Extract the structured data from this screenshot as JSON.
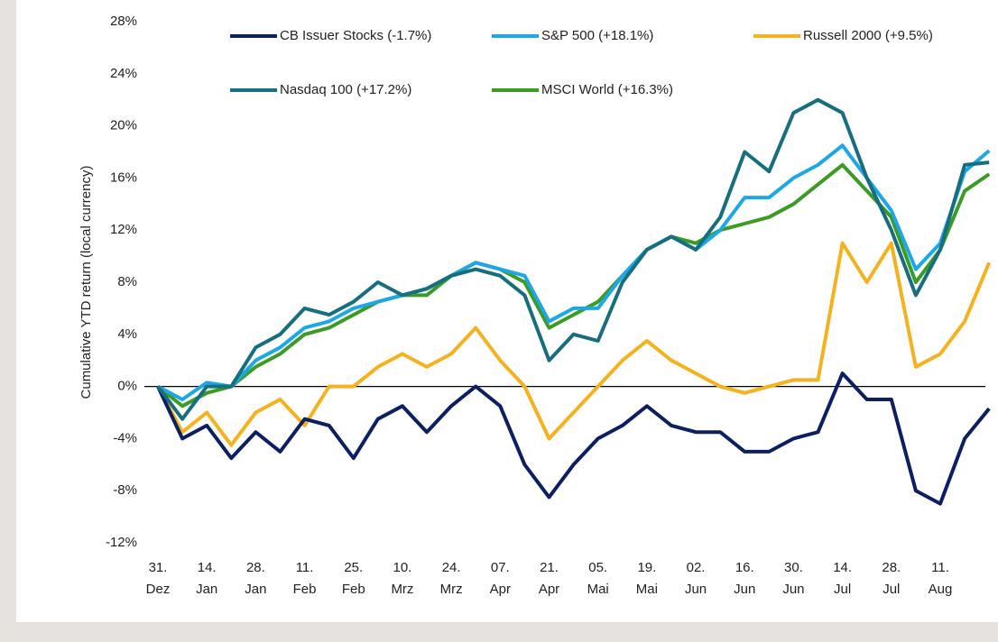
{
  "chart_data": {
    "type": "line",
    "y_axis_label": "Cumulative YTD return (local currency)",
    "categories": [
      "31. Dez",
      null,
      "14. Jan",
      null,
      "28. Jan",
      null,
      "11. Feb",
      null,
      "25. Feb",
      null,
      "10. Mrz",
      null,
      "24. Mrz",
      null,
      "07. Apr",
      null,
      "21. Apr",
      null,
      "05. Mai",
      null,
      "19. Mai",
      null,
      "02. Jun",
      null,
      "16. Jun",
      null,
      "30. Jun",
      null,
      "14. Jul",
      null,
      "28. Jul",
      null,
      "11. Aug",
      null,
      null
    ],
    "series": [
      {
        "name": "CB Issuer Stocks (-1.7%)",
        "color": "#0b1f62",
        "values": [
          0,
          -4,
          -3,
          -5.5,
          -3.5,
          -5,
          -2.5,
          -3,
          -5.5,
          -2.5,
          -1.5,
          -3.5,
          -1.5,
          0,
          -1.5,
          -6,
          -8.5,
          -6,
          -4,
          -3,
          -1.5,
          -3,
          -3.5,
          -3.5,
          -5,
          -5,
          -4,
          -3.5,
          1,
          -1,
          -1,
          -8,
          -9,
          -4,
          -1.7
        ]
      },
      {
        "name": "S&P 500 (+18.1%)",
        "color": "#1ea7e6",
        "values": [
          0,
          -1,
          0.3,
          0,
          2,
          3,
          4.5,
          5,
          6,
          6.5,
          7,
          7.5,
          8.5,
          9.5,
          9,
          8.5,
          5,
          6,
          6,
          8.5,
          10.5,
          11.5,
          10.5,
          12,
          14.5,
          14.5,
          16,
          17,
          18.5,
          16,
          13.5,
          9,
          11,
          16.5,
          18.1
        ]
      },
      {
        "name": "Russell 2000 (+9.5%)",
        "color": "#f5b21e",
        "values": [
          0,
          -3.5,
          -2,
          -4.5,
          -2,
          -1,
          -3,
          0,
          0,
          1.5,
          2.5,
          1.5,
          2.5,
          4.5,
          2,
          0,
          -4,
          -2,
          0,
          2,
          3.5,
          2,
          1,
          0,
          -0.5,
          0,
          0.5,
          0.5,
          11,
          8,
          11,
          1.5,
          2.5,
          5,
          9.5
        ]
      },
      {
        "name": "Nasdaq 100 (+17.2%)",
        "color": "#166e7e",
        "values": [
          0,
          -2.5,
          0,
          0,
          3,
          4,
          6,
          5.5,
          6.5,
          8,
          7,
          7.5,
          8.5,
          9,
          8.5,
          7,
          2,
          4,
          3.5,
          8,
          10.5,
          11.5,
          10.5,
          13,
          18,
          16.5,
          21,
          22,
          21,
          16,
          12,
          7,
          10.5,
          17,
          17.2
        ]
      },
      {
        "name": "MSCI World (+16.3%)",
        "color": "#3b9b24",
        "values": [
          0,
          -1.5,
          -0.5,
          0,
          1.5,
          2.5,
          4,
          4.5,
          5.5,
          6.5,
          7,
          7,
          8.5,
          9.5,
          9,
          8,
          4.5,
          5.5,
          6.5,
          8.5,
          10.5,
          11.5,
          11,
          12,
          12.5,
          13,
          14,
          15.5,
          17,
          15,
          13,
          8,
          10.5,
          15,
          16.3
        ]
      }
    ],
    "ylim": [
      -12,
      28
    ],
    "yticks": [
      {
        "value": -12,
        "label": "-12%"
      },
      {
        "value": -8,
        "label": "-8%"
      },
      {
        "value": -4,
        "label": "-4%"
      },
      {
        "value": 0,
        "label": "0%"
      },
      {
        "value": 4,
        "label": "4%"
      },
      {
        "value": 8,
        "label": "8%"
      },
      {
        "value": 12,
        "label": "12%"
      },
      {
        "value": 16,
        "label": "16%"
      },
      {
        "value": 20,
        "label": "20%"
      },
      {
        "value": 24,
        "label": "24%"
      },
      {
        "value": 28,
        "label": "28%"
      }
    ],
    "zero_line": true,
    "grid": false
  }
}
